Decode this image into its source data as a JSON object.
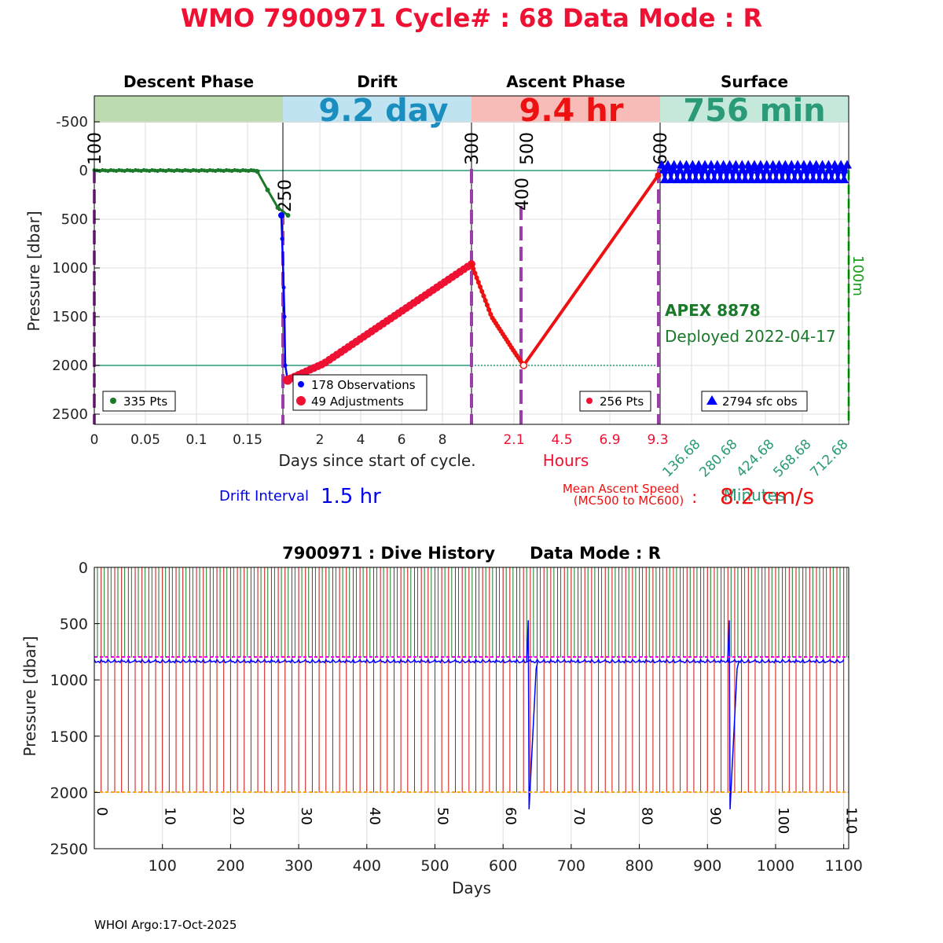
{
  "header": {
    "title": "WMO 7900971   Cycle# : 68   Data Mode : R",
    "title_color": "#ee1133"
  },
  "top_chart": {
    "phases": [
      {
        "name": "Descent Phase",
        "value": "",
        "band_color": "#bcdcb0",
        "value_color": "#000000"
      },
      {
        "name": "Drift",
        "value": "9.2 day",
        "band_color": "#bfe3f0",
        "value_color": "#1a8fbf"
      },
      {
        "name": "Ascent Phase",
        "value": "9.4 hr",
        "band_color": "#f7bcb7",
        "value_color": "#ee1111"
      },
      {
        "name": "Surface",
        "value": "756 min",
        "band_color": "#c4e8da",
        "value_color": "#2a9a78"
      }
    ],
    "ylabel": "Pressure [dbar]",
    "yticks": [
      "-500",
      "0",
      "500",
      "1000",
      "1500",
      "2000",
      "2500"
    ],
    "descent_ticks": [
      "0",
      "0.05",
      "0.1",
      "0.15"
    ],
    "drift_ticks": [
      "2",
      "4",
      "6",
      "8"
    ],
    "ascent_ticks": [
      "2.1",
      "4.5",
      "6.9",
      "9.3"
    ],
    "surface_ticks": [
      "136.68",
      "280.68",
      "424.68",
      "568.68",
      "712.68"
    ],
    "xlabel_days": "Days since start of cycle.",
    "xlabel_hours": "Hours",
    "xlabel_minutes": "Minutes",
    "mc_markers": [
      "100",
      "250",
      "300",
      "400",
      "500",
      "600"
    ],
    "legends": {
      "descent": "335 Pts",
      "drift_obs": "178 Observations",
      "drift_adj": "49 Adjustments",
      "ascent": "256 Pts",
      "surface": "2794 sfc obs"
    },
    "float_model": "APEX 8878",
    "deployed": "Deployed 2022-04-17",
    "depth_label": "100m",
    "drift_interval_label": "Drift Interval",
    "drift_interval_value": "1.5 hr",
    "ascent_speed_label1": "Mean Ascent Speed",
    "ascent_speed_label2": "(MC500 to MC600)",
    "ascent_speed_colon": ":",
    "ascent_speed_value": "8.2 cm/s"
  },
  "bottom_chart": {
    "title": "7900971 : Dive History      Data Mode : R",
    "ylabel": "Pressure [dbar]",
    "xlabel": "Days",
    "yticks": [
      "0",
      "500",
      "1000",
      "1500",
      "2000",
      "2500"
    ],
    "xticks": [
      "100",
      "200",
      "300",
      "400",
      "500",
      "600",
      "700",
      "800",
      "900",
      "1000",
      "1100"
    ],
    "cycle_labels": [
      "0",
      "10",
      "20",
      "30",
      "40",
      "50",
      "60",
      "70",
      "80",
      "90",
      "100",
      "110"
    ]
  },
  "footer": {
    "credit": "WHOI Argo:17-Oct-2025"
  },
  "chart_data": [
    {
      "type": "line",
      "title": "WMO 7900971 Cycle 68 profile",
      "ylabel": "Pressure [dbar]",
      "ylim": [
        -750,
        2600
      ],
      "series": [
        {
          "name": "Descent",
          "x_days": [
            0,
            0.05,
            0.1,
            0.15,
            0.16,
            0.17,
            0.18,
            0.19
          ],
          "y": [
            0,
            0,
            0,
            0,
            10,
            200,
            380,
            460
          ],
          "color": "#1a7a2a"
        },
        {
          "name": "Drift sink",
          "x_days": [
            0.0,
            0.05,
            0.1,
            0.15,
            0.2
          ],
          "y": [
            460,
            1000,
            1500,
            2100,
            2150
          ],
          "color": "#0000ff"
        },
        {
          "name": "Drift",
          "x_days": [
            0.2,
            2,
            4,
            6,
            8,
            9.2
          ],
          "y": [
            2150,
            1980,
            1700,
            1420,
            1130,
            960
          ],
          "color": "#ee1133"
        },
        {
          "name": "Ascent",
          "x_hours": [
            0,
            1,
            2.1,
            2.6,
            9.3
          ],
          "y": [
            960,
            1500,
            1850,
            2000,
            50
          ],
          "color": "#ee1111"
        }
      ]
    },
    {
      "type": "line",
      "title": "7900971 : Dive History",
      "xlabel": "Days",
      "ylabel": "Pressure [dbar]",
      "xlim": [
        0,
        1105
      ],
      "ylim": [
        0,
        2500
      ],
      "cycles": 111,
      "cycle_interval_days": 10,
      "park_pressure": 800,
      "profile_pressure": 2000,
      "drift_pressure_typical": 840,
      "anomalies": [
        {
          "day": 637,
          "pressure": 2150
        },
        {
          "day": 932,
          "pressure": 2150
        }
      ]
    }
  ]
}
